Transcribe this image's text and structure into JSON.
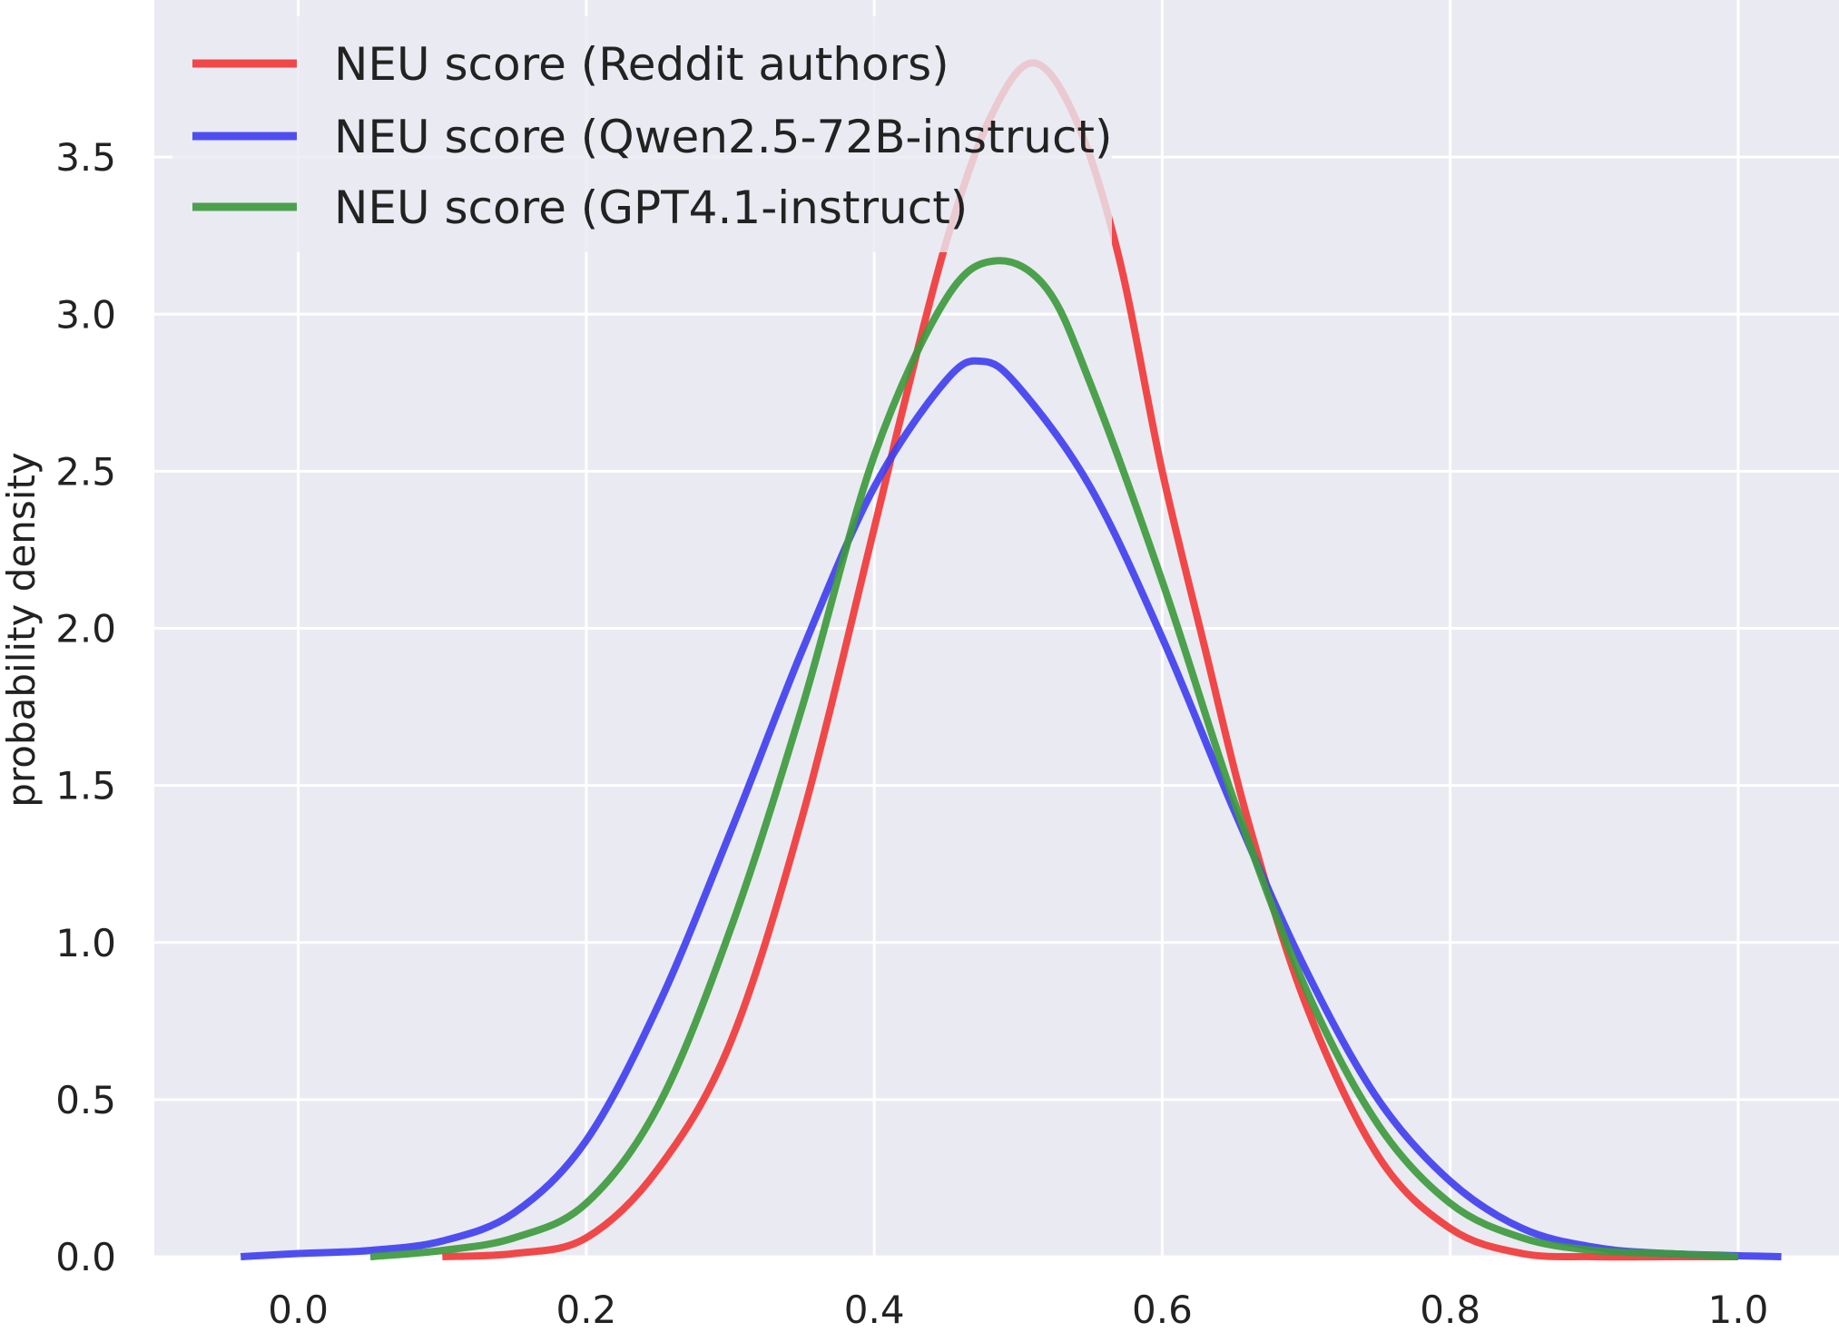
{
  "chart_data": {
    "type": "line",
    "title": "",
    "xlabel": "",
    "ylabel": "probability density",
    "xlim": [
      -0.1,
      1.07
    ],
    "ylim": [
      0,
      4.0
    ],
    "x_ticks": [
      "0.0",
      "0.2",
      "0.4",
      "0.6",
      "0.8",
      "1.0"
    ],
    "y_ticks": [
      "0.0",
      "0.5",
      "1.0",
      "1.5",
      "2.0",
      "2.5",
      "3.0",
      "3.5"
    ],
    "grid": true,
    "legend_position": "top-left",
    "colors": {
      "background": "#eaeaf2",
      "grid": "#ffffff"
    },
    "series": [
      {
        "name": "NEU score (Reddit authors)",
        "color": "#f03a3a",
        "x": [
          0.1,
          0.15,
          0.2,
          0.25,
          0.3,
          0.35,
          0.4,
          0.42,
          0.45,
          0.48,
          0.51,
          0.54,
          0.57,
          0.6,
          0.63,
          0.66,
          0.7,
          0.75,
          0.8,
          0.85,
          0.9,
          0.95,
          1.0
        ],
        "y": [
          0.0,
          0.01,
          0.06,
          0.28,
          0.68,
          1.4,
          2.32,
          2.7,
          3.23,
          3.62,
          3.8,
          3.62,
          3.18,
          2.5,
          1.93,
          1.38,
          0.8,
          0.32,
          0.09,
          0.01,
          0.0,
          0.0,
          0.0
        ]
      },
      {
        "name": "NEU score (Qwen2.5-72B-instruct)",
        "color": "#4040f0",
        "x": [
          -0.04,
          0.0,
          0.05,
          0.1,
          0.15,
          0.2,
          0.25,
          0.3,
          0.35,
          0.4,
          0.45,
          0.475,
          0.5,
          0.55,
          0.6,
          0.65,
          0.7,
          0.75,
          0.8,
          0.85,
          0.9,
          0.95,
          1.03
        ],
        "y": [
          0.0,
          0.01,
          0.02,
          0.05,
          0.14,
          0.37,
          0.8,
          1.35,
          1.93,
          2.45,
          2.79,
          2.85,
          2.77,
          2.45,
          1.97,
          1.42,
          0.91,
          0.5,
          0.24,
          0.09,
          0.03,
          0.01,
          0.0
        ]
      },
      {
        "name": "NEU score (GPT4.1-instruct)",
        "color": "#3e9a3e",
        "x": [
          0.05,
          0.1,
          0.15,
          0.2,
          0.25,
          0.3,
          0.35,
          0.4,
          0.45,
          0.485,
          0.52,
          0.55,
          0.6,
          0.65,
          0.7,
          0.75,
          0.8,
          0.85,
          0.9,
          0.95,
          1.0
        ],
        "y": [
          0.0,
          0.02,
          0.06,
          0.17,
          0.48,
          1.04,
          1.75,
          2.55,
          3.05,
          3.17,
          3.08,
          2.78,
          2.15,
          1.45,
          0.85,
          0.42,
          0.17,
          0.06,
          0.02,
          0.01,
          0.0
        ]
      }
    ]
  }
}
